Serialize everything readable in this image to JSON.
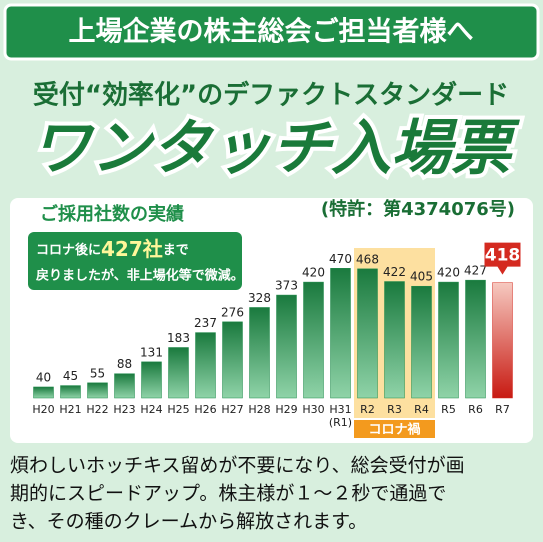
{
  "header": {
    "banner": "上場企業の株主総会ご担当者様へ",
    "tagline": "受付“効率化”のデファクトスタンダード",
    "product": "ワンタッチ入場票"
  },
  "chart_data": {
    "type": "bar",
    "title": "ご採用社数の実績",
    "subtitle": "(特許：第4374076号)",
    "note": {
      "line1": [
        "コロナ後に",
        "427社",
        "まで"
      ],
      "line2": "戻りましたが、非上場化等で微減。"
    },
    "categories": [
      "H20",
      "H21",
      "H22",
      "H23",
      "H24",
      "H25",
      "H26",
      "H27",
      "H28",
      "H29",
      "H30",
      "H31",
      "R2",
      "R3",
      "R4",
      "R5",
      "R6",
      "R7"
    ],
    "category_sublabels": [
      null,
      null,
      null,
      null,
      null,
      null,
      null,
      null,
      null,
      null,
      null,
      "(R1)",
      null,
      null,
      null,
      null,
      null,
      null
    ],
    "values": [
      40,
      45,
      55,
      88,
      131,
      183,
      237,
      276,
      328,
      373,
      420,
      470,
      468,
      422,
      405,
      420,
      427,
      418
    ],
    "colors": [
      "#1e8a4a",
      "#1e8a4a",
      "#1e8a4a",
      "#1e8a4a",
      "#1e8a4a",
      "#1e8a4a",
      "#1e8a4a",
      "#1e8a4a",
      "#1e8a4a",
      "#1e8a4a",
      "#1e8a4a",
      "#1e8a4a",
      "#1e8a4a",
      "#1e8a4a",
      "#1e8a4a",
      "#1e8a4a",
      "#1e8a4a",
      "#d42a20"
    ],
    "ylim": [
      0,
      500
    ],
    "highlight": {
      "label": "コロナ禍",
      "from": 12,
      "to": 14,
      "color": "#fde0a0"
    }
  },
  "body": {
    "lines": [
      "煩わしいホッチキス留めが不要になり、総会受付が画",
      "期的にスピードアップ。株主様が１〜２秒で通過で",
      "き、その種のクレームから解放されます。"
    ]
  }
}
